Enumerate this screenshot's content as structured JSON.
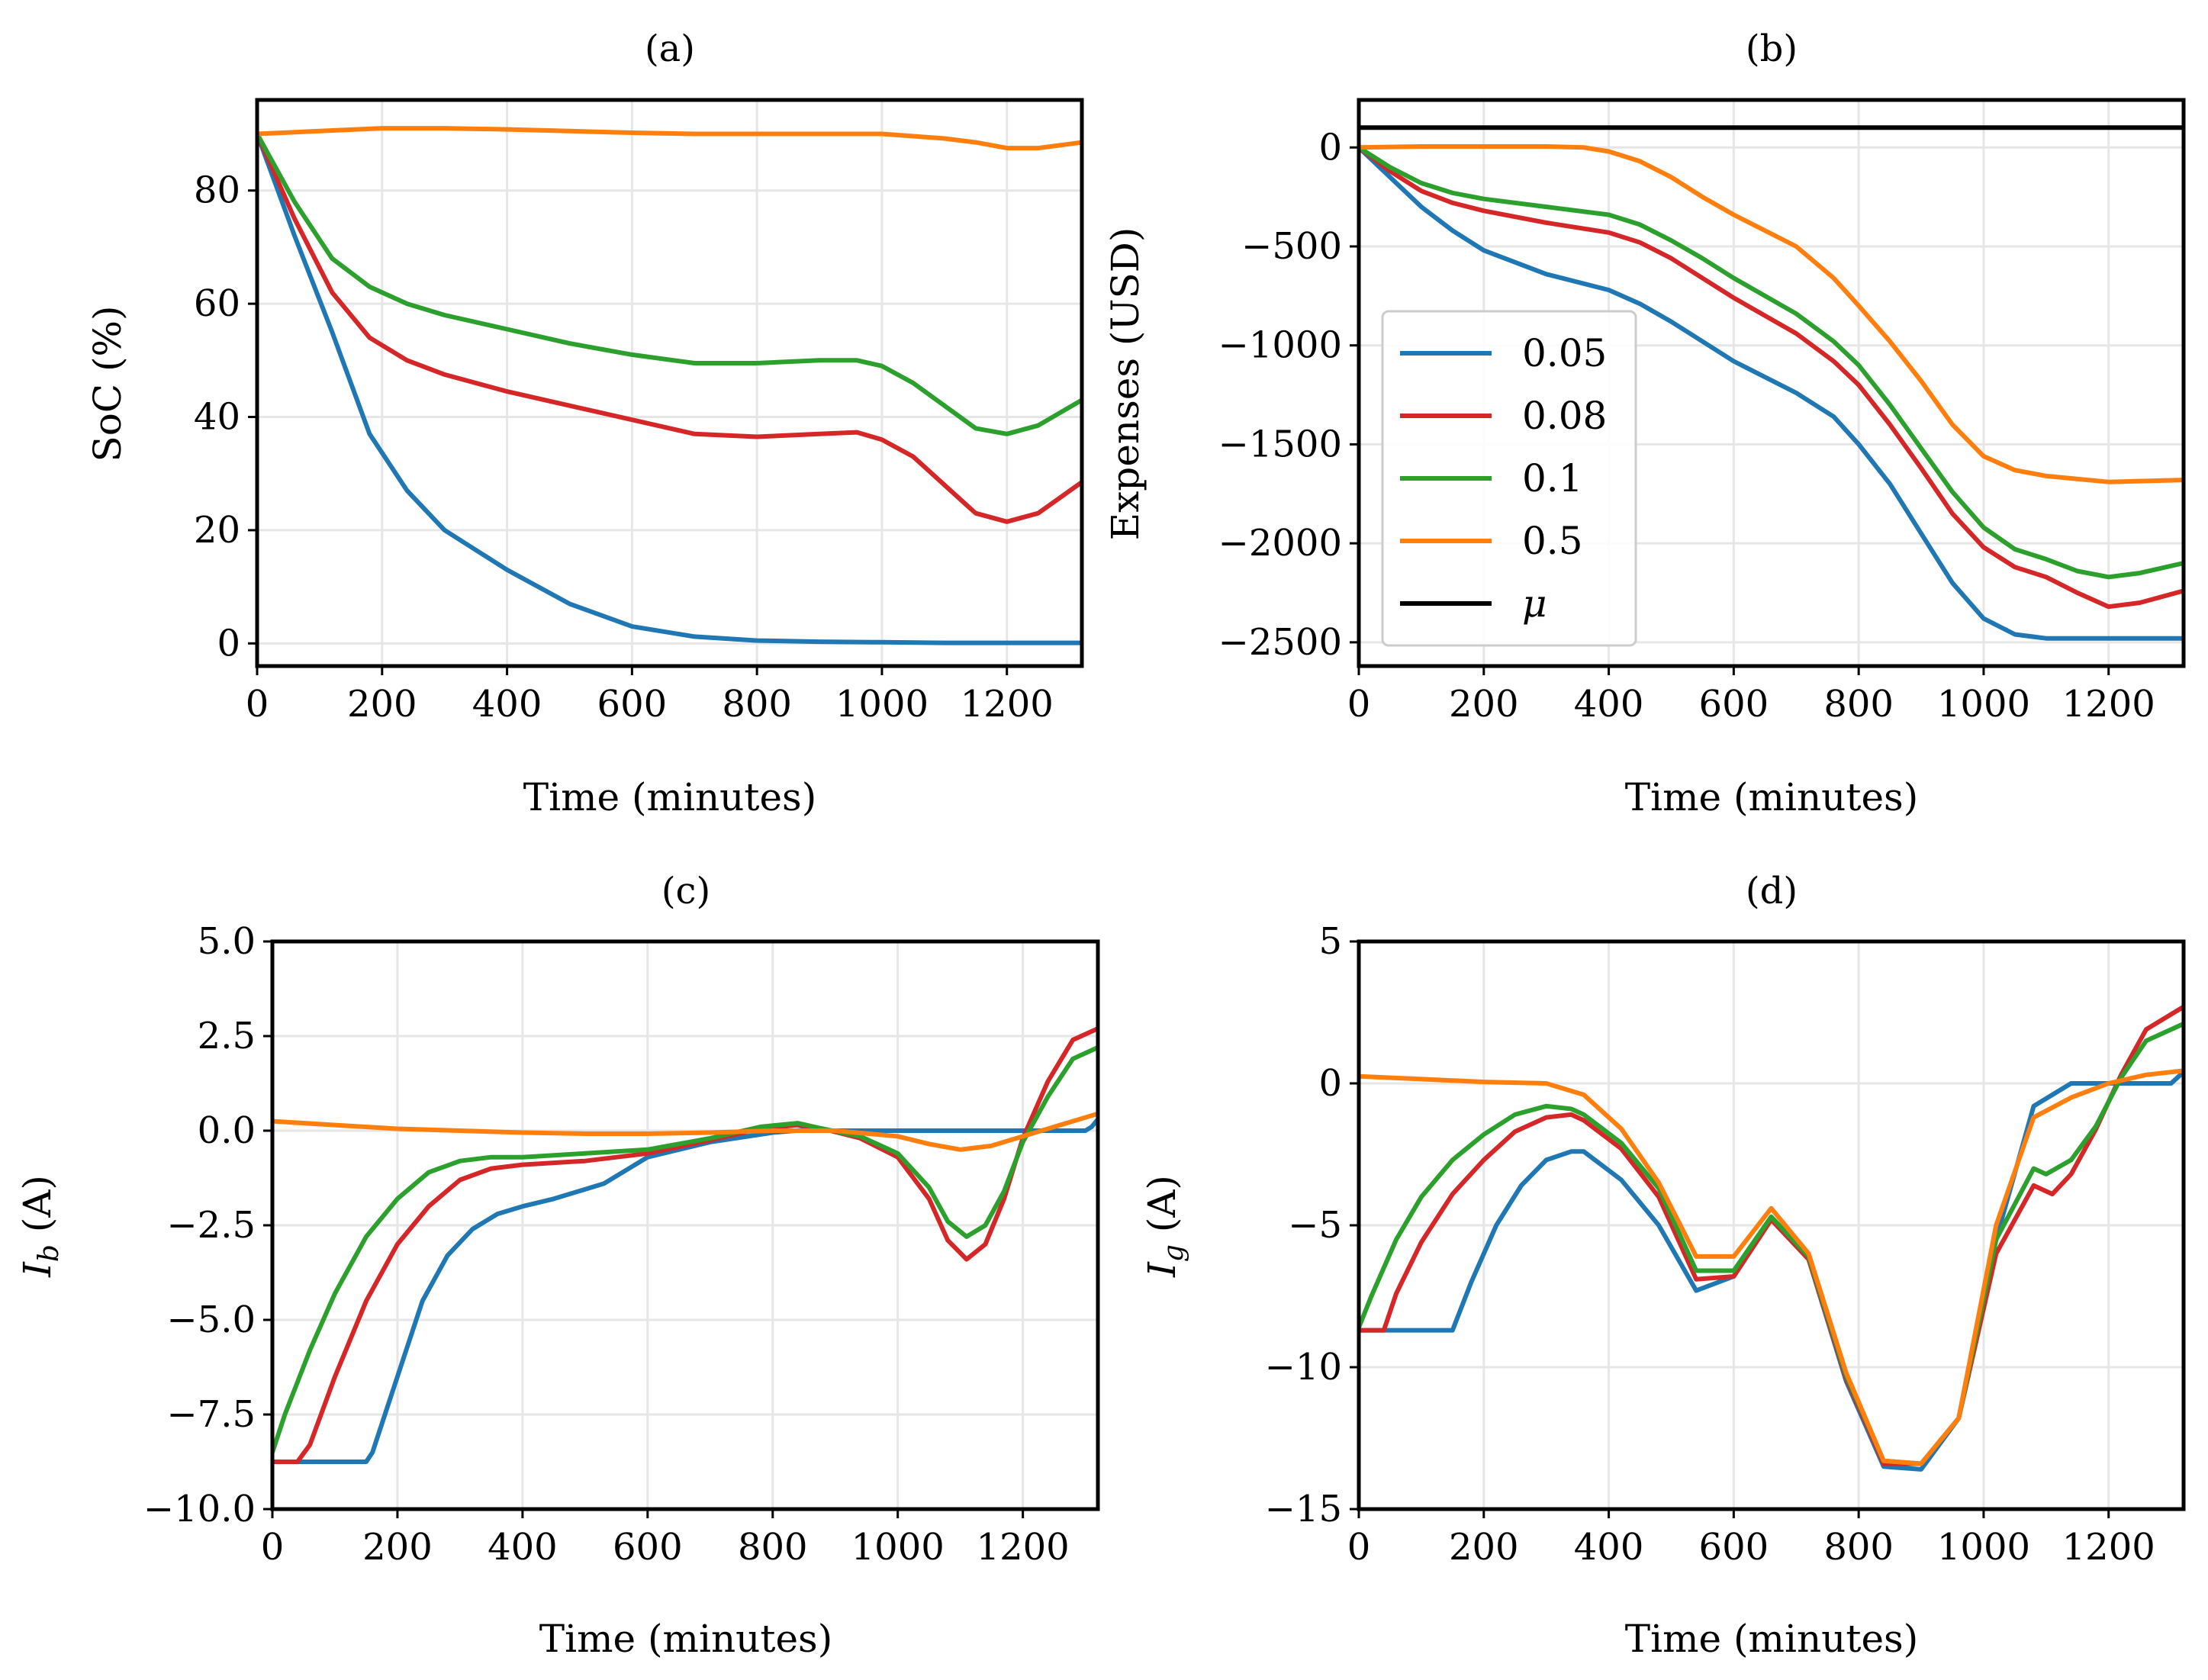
{
  "colors": {
    "c005": "#1f77b4",
    "c008": "#d62728",
    "c01": "#2ca02c",
    "c05": "#ff7f0e",
    "mu": "#000000",
    "grid": "#e6e6e6"
  },
  "legend": {
    "items": [
      {
        "label": "0.05",
        "color": "#1f77b4"
      },
      {
        "label": "0.08",
        "color": "#d62728"
      },
      {
        "label": "0.1",
        "color": "#2ca02c"
      },
      {
        "label": "0.5",
        "color": "#ff7f0e"
      },
      {
        "label": "μ",
        "color": "#000000"
      }
    ]
  },
  "chart_data": [
    {
      "type": "line",
      "title": "(a)",
      "xlabel": "Time (minutes)",
      "ylabel": "SoC (%)",
      "xlim": [
        0,
        1320
      ],
      "ylim": [
        -4,
        96
      ],
      "xticks": [
        0,
        200,
        400,
        600,
        800,
        1000,
        1200
      ],
      "yticks": [
        0,
        20,
        40,
        60,
        80
      ],
      "ytick_labels": [
        "0",
        "20",
        "40",
        "60",
        "80"
      ],
      "series": [
        {
          "name": "0.05",
          "color": "#1f77b4",
          "x": [
            0,
            60,
            120,
            180,
            240,
            300,
            400,
            500,
            600,
            700,
            800,
            900,
            1000,
            1100,
            1200,
            1320
          ],
          "y": [
            90,
            72,
            55,
            37,
            27,
            20,
            13,
            7,
            3,
            1.2,
            0.5,
            0.3,
            0.2,
            0.1,
            0.1,
            0.1
          ]
        },
        {
          "name": "0.08",
          "color": "#d62728",
          "x": [
            0,
            60,
            120,
            180,
            240,
            300,
            400,
            500,
            600,
            700,
            800,
            900,
            960,
            1000,
            1050,
            1100,
            1150,
            1200,
            1250,
            1320
          ],
          "y": [
            90,
            75,
            62,
            54,
            50,
            47.5,
            44.5,
            42,
            39.5,
            37,
            36.5,
            37,
            37.3,
            36,
            33,
            28,
            23,
            21.5,
            23,
            28.5
          ]
        },
        {
          "name": "0.1",
          "color": "#2ca02c",
          "x": [
            0,
            60,
            120,
            180,
            240,
            300,
            400,
            500,
            600,
            700,
            800,
            900,
            960,
            1000,
            1050,
            1100,
            1150,
            1200,
            1250,
            1320
          ],
          "y": [
            90,
            78,
            68,
            63,
            60,
            58,
            55.5,
            53,
            51,
            49.5,
            49.5,
            50,
            50,
            49,
            46,
            42,
            38,
            37,
            38.5,
            43
          ]
        },
        {
          "name": "0.5",
          "color": "#ff7f0e",
          "x": [
            0,
            100,
            200,
            300,
            400,
            500,
            600,
            700,
            800,
            900,
            1000,
            1100,
            1150,
            1200,
            1250,
            1320
          ],
          "y": [
            90,
            90.5,
            91,
            91,
            90.8,
            90.5,
            90.2,
            90,
            90,
            90,
            90,
            89.2,
            88.5,
            87.5,
            87.5,
            88.5
          ]
        }
      ]
    },
    {
      "type": "line",
      "title": "(b)",
      "xlabel": "Time (minutes)",
      "ylabel": "Expenses (USD)",
      "xlim": [
        0,
        1320
      ],
      "ylim": [
        -2620,
        240
      ],
      "xticks": [
        0,
        200,
        400,
        600,
        800,
        1000,
        1200
      ],
      "yticks": [
        0,
        -500,
        -1000,
        -1500,
        -2000,
        -2500
      ],
      "ytick_labels": [
        "0",
        "−500",
        "−1000",
        "−1500",
        "−2000",
        "−2500"
      ],
      "series": [
        {
          "name": "0.05",
          "color": "#1f77b4",
          "x": [
            0,
            50,
            100,
            150,
            200,
            300,
            400,
            450,
            500,
            550,
            600,
            700,
            760,
            800,
            850,
            900,
            950,
            1000,
            1050,
            1100,
            1200,
            1320
          ],
          "y": [
            0,
            -150,
            -300,
            -420,
            -520,
            -640,
            -720,
            -790,
            -880,
            -980,
            -1080,
            -1240,
            -1360,
            -1500,
            -1700,
            -1950,
            -2200,
            -2380,
            -2460,
            -2480,
            -2480,
            -2480
          ]
        },
        {
          "name": "0.08",
          "color": "#d62728",
          "x": [
            0,
            50,
            100,
            150,
            200,
            300,
            400,
            450,
            500,
            550,
            600,
            700,
            760,
            800,
            850,
            900,
            950,
            1000,
            1050,
            1100,
            1150,
            1200,
            1250,
            1320
          ],
          "y": [
            0,
            -120,
            -220,
            -280,
            -320,
            -380,
            -430,
            -480,
            -560,
            -660,
            -760,
            -940,
            -1080,
            -1200,
            -1400,
            -1620,
            -1850,
            -2020,
            -2120,
            -2170,
            -2250,
            -2320,
            -2300,
            -2240
          ]
        },
        {
          "name": "0.1",
          "color": "#2ca02c",
          "x": [
            0,
            50,
            100,
            150,
            200,
            300,
            400,
            450,
            500,
            550,
            600,
            700,
            760,
            800,
            850,
            900,
            950,
            1000,
            1050,
            1100,
            1150,
            1200,
            1250,
            1320
          ],
          "y": [
            0,
            -100,
            -180,
            -230,
            -260,
            -300,
            -340,
            -390,
            -470,
            -560,
            -660,
            -840,
            -980,
            -1100,
            -1300,
            -1520,
            -1740,
            -1920,
            -2030,
            -2080,
            -2140,
            -2170,
            -2150,
            -2100
          ]
        },
        {
          "name": "0.5",
          "color": "#ff7f0e",
          "x": [
            0,
            100,
            200,
            300,
            360,
            400,
            450,
            500,
            550,
            600,
            700,
            760,
            800,
            850,
            900,
            950,
            1000,
            1050,
            1100,
            1200,
            1320
          ],
          "y": [
            0,
            5,
            5,
            5,
            0,
            -20,
            -70,
            -150,
            -250,
            -340,
            -500,
            -660,
            -800,
            -980,
            -1180,
            -1400,
            -1560,
            -1630,
            -1660,
            -1690,
            -1680
          ]
        },
        {
          "name": "μ",
          "color": "#000000",
          "x": [
            0,
            1320
          ],
          "y": [
            100,
            100
          ]
        }
      ]
    },
    {
      "type": "line",
      "title": "(c)",
      "xlabel": "Time (minutes)",
      "ylabel": "I_b (A)",
      "ylabel_main": "I",
      "ylabel_sub": "b",
      "ylabel_tail": " (A)",
      "xlim": [
        0,
        1320
      ],
      "ylim": [
        -10,
        5
      ],
      "xticks": [
        0,
        200,
        400,
        600,
        800,
        1000,
        1200
      ],
      "yticks": [
        5.0,
        2.5,
        0.0,
        -2.5,
        -5.0,
        -7.5,
        -10.0
      ],
      "ytick_labels": [
        "5.0",
        "2.5",
        "0.0",
        "−2.5",
        "−5.0",
        "−7.5",
        "−10.0"
      ],
      "series": [
        {
          "name": "0.05",
          "color": "#1f77b4",
          "x": [
            0,
            150,
            160,
            200,
            240,
            280,
            320,
            360,
            400,
            450,
            500,
            530,
            560,
            600,
            700,
            800,
            850,
            900,
            1000,
            1100,
            1200,
            1300,
            1310,
            1320
          ],
          "y": [
            -8.75,
            -8.75,
            -8.5,
            -6.5,
            -4.5,
            -3.3,
            -2.6,
            -2.2,
            -2.0,
            -1.8,
            -1.55,
            -1.4,
            -1.1,
            -0.7,
            -0.3,
            -0.05,
            0.02,
            0,
            0,
            0,
            0,
            0,
            0.1,
            0.3
          ]
        },
        {
          "name": "0.08",
          "color": "#d62728",
          "x": [
            0,
            40,
            60,
            100,
            150,
            200,
            250,
            300,
            350,
            400,
            500,
            600,
            700,
            780,
            840,
            880,
            940,
            1000,
            1050,
            1080,
            1110,
            1140,
            1170,
            1200,
            1240,
            1280,
            1320
          ],
          "y": [
            -8.75,
            -8.75,
            -8.3,
            -6.5,
            -4.5,
            -3.0,
            -2.0,
            -1.3,
            -1.0,
            -0.9,
            -0.8,
            -0.6,
            -0.25,
            0.05,
            0.15,
            0.05,
            -0.2,
            -0.7,
            -1.8,
            -2.9,
            -3.4,
            -3.0,
            -1.8,
            -0.2,
            1.3,
            2.4,
            2.7
          ]
        },
        {
          "name": "0.1",
          "color": "#2ca02c",
          "x": [
            0,
            20,
            60,
            100,
            150,
            200,
            250,
            300,
            350,
            400,
            500,
            600,
            700,
            780,
            840,
            880,
            940,
            1000,
            1050,
            1080,
            1110,
            1140,
            1170,
            1200,
            1240,
            1280,
            1320
          ],
          "y": [
            -8.5,
            -7.5,
            -5.8,
            -4.3,
            -2.8,
            -1.8,
            -1.1,
            -0.8,
            -0.7,
            -0.7,
            -0.6,
            -0.5,
            -0.2,
            0.1,
            0.2,
            0.05,
            -0.15,
            -0.6,
            -1.5,
            -2.4,
            -2.8,
            -2.5,
            -1.6,
            -0.3,
            0.9,
            1.9,
            2.2
          ]
        },
        {
          "name": "0.5",
          "color": "#ff7f0e",
          "x": [
            0,
            100,
            200,
            300,
            400,
            500,
            600,
            700,
            800,
            900,
            1000,
            1050,
            1100,
            1150,
            1200,
            1250,
            1320
          ],
          "y": [
            0.25,
            0.15,
            0.05,
            0,
            -0.05,
            -0.08,
            -0.08,
            -0.05,
            0,
            0,
            -0.15,
            -0.35,
            -0.5,
            -0.4,
            -0.15,
            0.1,
            0.45
          ]
        }
      ]
    },
    {
      "type": "line",
      "title": "(d)",
      "xlabel": "Time (minutes)",
      "ylabel": "I_g (A)",
      "ylabel_main": "I",
      "ylabel_sub": "g",
      "ylabel_tail": " (A)",
      "xlim": [
        0,
        1320
      ],
      "ylim": [
        -15,
        5
      ],
      "xticks": [
        0,
        200,
        400,
        600,
        800,
        1000,
        1200
      ],
      "yticks": [
        5,
        0,
        -5,
        -10,
        -15
      ],
      "ytick_labels": [
        "5",
        "0",
        "−5",
        "−10",
        "−15"
      ],
      "series": [
        {
          "name": "0.05",
          "color": "#1f77b4",
          "x": [
            0,
            150,
            180,
            220,
            260,
            300,
            340,
            360,
            420,
            480,
            540,
            600,
            660,
            720,
            780,
            840,
            900,
            960,
            1020,
            1080,
            1140,
            1200,
            1260,
            1300,
            1320
          ],
          "y": [
            -8.7,
            -8.7,
            -7.0,
            -5.0,
            -3.6,
            -2.7,
            -2.4,
            -2.4,
            -3.4,
            -5.0,
            -7.3,
            -6.8,
            -4.8,
            -6.2,
            -10.5,
            -13.5,
            -13.6,
            -11.8,
            -5.5,
            -0.8,
            0,
            0,
            0,
            0,
            0.4
          ]
        },
        {
          "name": "0.08",
          "color": "#d62728",
          "x": [
            0,
            40,
            60,
            100,
            150,
            200,
            250,
            300,
            340,
            360,
            420,
            480,
            540,
            600,
            660,
            720,
            780,
            840,
            900,
            960,
            1020,
            1080,
            1110,
            1140,
            1180,
            1220,
            1260,
            1320
          ],
          "y": [
            -8.7,
            -8.7,
            -7.4,
            -5.6,
            -3.9,
            -2.7,
            -1.7,
            -1.2,
            -1.1,
            -1.3,
            -2.3,
            -4.0,
            -6.9,
            -6.8,
            -4.8,
            -6.2,
            -10.4,
            -13.4,
            -13.4,
            -11.8,
            -6.0,
            -3.6,
            -3.9,
            -3.2,
            -1.6,
            0.3,
            1.9,
            2.7
          ]
        },
        {
          "name": "0.1",
          "color": "#2ca02c",
          "x": [
            0,
            20,
            60,
            100,
            150,
            200,
            250,
            300,
            340,
            360,
            420,
            480,
            540,
            600,
            660,
            720,
            780,
            840,
            900,
            960,
            1020,
            1080,
            1100,
            1140,
            1180,
            1220,
            1260,
            1320
          ],
          "y": [
            -8.6,
            -7.5,
            -5.5,
            -4.0,
            -2.7,
            -1.8,
            -1.1,
            -0.8,
            -0.9,
            -1.1,
            -2.1,
            -3.7,
            -6.6,
            -6.6,
            -4.7,
            -6.1,
            -10.3,
            -13.3,
            -13.4,
            -11.8,
            -5.5,
            -3.0,
            -3.2,
            -2.7,
            -1.5,
            0.2,
            1.5,
            2.1
          ]
        },
        {
          "name": "0.5",
          "color": "#ff7f0e",
          "x": [
            0,
            100,
            200,
            300,
            360,
            420,
            480,
            540,
            600,
            660,
            720,
            780,
            840,
            900,
            960,
            1020,
            1080,
            1140,
            1200,
            1260,
            1320
          ],
          "y": [
            0.25,
            0.15,
            0.05,
            0,
            -0.4,
            -1.6,
            -3.5,
            -6.1,
            -6.1,
            -4.4,
            -6.0,
            -10.2,
            -13.3,
            -13.4,
            -11.8,
            -5.0,
            -1.2,
            -0.5,
            0,
            0.3,
            0.45
          ]
        }
      ]
    }
  ]
}
